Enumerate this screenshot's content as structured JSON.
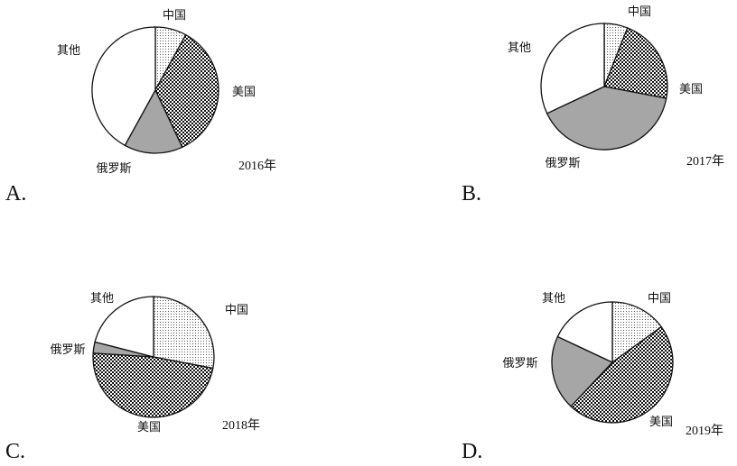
{
  "chart_data": [
    {
      "type": "pie",
      "option": "A.",
      "year_label": "2016年",
      "slices": [
        {
          "name": "中国",
          "value": 8,
          "fill": "dotted"
        },
        {
          "name": "美国",
          "value": 35,
          "fill": "checker"
        },
        {
          "name": "俄罗斯",
          "value": 15,
          "fill": "gray"
        },
        {
          "name": "其他",
          "value": 42,
          "fill": "white"
        }
      ]
    },
    {
      "type": "pie",
      "option": "B.",
      "year_label": "2017年",
      "slices": [
        {
          "name": "中国",
          "value": 6,
          "fill": "dotted"
        },
        {
          "name": "美国",
          "value": 22,
          "fill": "checker"
        },
        {
          "name": "俄罗斯",
          "value": 40,
          "fill": "gray"
        },
        {
          "name": "其他",
          "value": 32,
          "fill": "white"
        }
      ]
    },
    {
      "type": "pie",
      "option": "C.",
      "year_label": "2018年",
      "slices": [
        {
          "name": "中国",
          "value": 28,
          "fill": "dotted"
        },
        {
          "name": "美国",
          "value": 48,
          "fill": "checker"
        },
        {
          "name": "俄罗斯",
          "value": 3,
          "fill": "gray"
        },
        {
          "name": "其他",
          "value": 21,
          "fill": "white"
        }
      ]
    },
    {
      "type": "pie",
      "option": "D.",
      "year_label": "2019年",
      "slices": [
        {
          "name": "中国",
          "value": 15,
          "fill": "dotted"
        },
        {
          "name": "美国",
          "value": 47,
          "fill": "checker"
        },
        {
          "name": "俄罗斯",
          "value": 20,
          "fill": "gray"
        },
        {
          "name": "其他",
          "value": 18,
          "fill": "white"
        }
      ]
    }
  ],
  "colors": {
    "gray": "#a6a6a6",
    "ink": "#111111",
    "background": "#ffffff"
  }
}
